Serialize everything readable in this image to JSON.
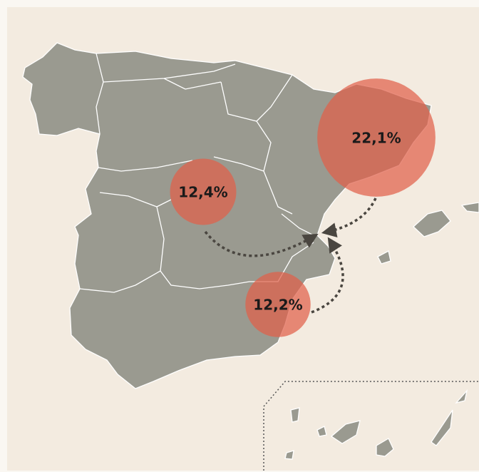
{
  "chart_data": {
    "type": "bubble-map",
    "values": [
      22.1,
      12.4,
      12.2
    ],
    "value_labels": [
      "22,1%",
      "12,4%",
      "12,2%"
    ],
    "color": "#e0604a"
  }
}
